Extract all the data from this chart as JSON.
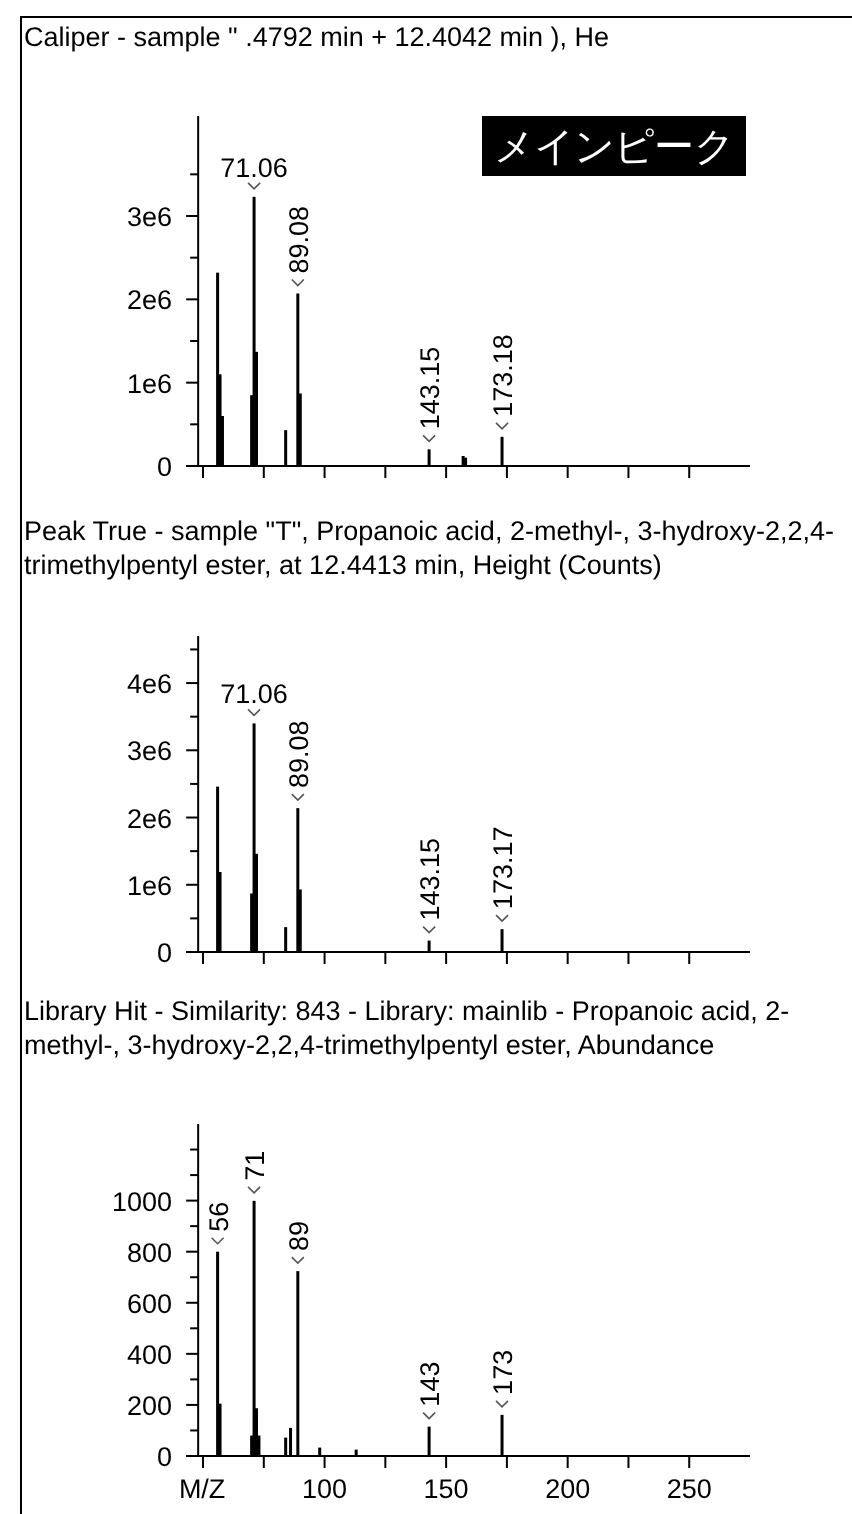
{
  "chart_data": [
    {
      "type": "bar",
      "title": "Caliper - sample \" .4792 min + 12.4042 min ), He",
      "x": [
        56,
        57,
        58,
        70,
        71,
        72,
        84,
        89,
        90,
        143,
        157,
        158,
        173
      ],
      "values": [
        2320000,
        1100000,
        600000,
        850000,
        3230000,
        1370000,
        430000,
        2070000,
        870000,
        200000,
        120000,
        100000,
        350000
      ],
      "color": "#000000",
      "xlim": [
        43,
        275
      ],
      "xticks": [
        {
          "value": 50,
          "label": null
        },
        {
          "value": 75,
          "label": null
        },
        {
          "value": 100,
          "label": null
        },
        {
          "value": 125,
          "label": null
        },
        {
          "value": 150,
          "label": null
        },
        {
          "value": 175,
          "label": null
        },
        {
          "value": 200,
          "label": null
        },
        {
          "value": 225,
          "label": null
        },
        {
          "value": 250,
          "label": null
        }
      ],
      "ylim": [
        0,
        4200000
      ],
      "yticks": [
        {
          "value": 0,
          "label": "0"
        },
        {
          "value": 500000,
          "label": null
        },
        {
          "value": 1000000,
          "label": "1e6"
        },
        {
          "value": 1500000,
          "label": null
        },
        {
          "value": 2000000,
          "label": "2e6"
        },
        {
          "value": 2500000,
          "label": null
        },
        {
          "value": 3000000,
          "label": "3e6"
        },
        {
          "value": 3500000,
          "label": null
        }
      ],
      "tick_labels": "y",
      "annotations": [
        {
          "text": "71.06",
          "x": 71,
          "y": 3230000
        },
        {
          "text": "89.08",
          "x": 89,
          "y": 2070000
        },
        {
          "text": "143.15",
          "x": 143,
          "y": 200000
        },
        {
          "text": "173.18",
          "x": 173,
          "y": 350000
        },
        "メインピーク"
      ]
    },
    {
      "type": "bar",
      "title": "Peak True - sample \"T\", Propanoic acid, 2-methyl-, 3-hydroxy-2,2,4-trimethylpentyl ester, at 12.4413 min, Height (Counts)",
      "x": [
        56,
        57,
        70,
        71,
        72,
        84,
        89,
        90,
        143,
        173
      ],
      "values": [
        2460000,
        1190000,
        870000,
        3400000,
        1460000,
        370000,
        2140000,
        930000,
        170000,
        340000
      ],
      "color": "#000000",
      "xlim": [
        43,
        275
      ],
      "xticks": [
        {
          "value": 50,
          "label": null
        },
        {
          "value": 75,
          "label": null
        },
        {
          "value": 100,
          "label": null
        },
        {
          "value": 125,
          "label": null
        },
        {
          "value": 150,
          "label": null
        },
        {
          "value": 175,
          "label": null
        },
        {
          "value": 200,
          "label": null
        },
        {
          "value": 225,
          "label": null
        },
        {
          "value": 250,
          "label": null
        }
      ],
      "ylim": [
        0,
        4700000
      ],
      "yticks": [
        {
          "value": 0,
          "label": "0"
        },
        {
          "value": 500000,
          "label": null
        },
        {
          "value": 1000000,
          "label": "1e6"
        },
        {
          "value": 1500000,
          "label": null
        },
        {
          "value": 2000000,
          "label": "2e6"
        },
        {
          "value": 2500000,
          "label": null
        },
        {
          "value": 3000000,
          "label": "3e6"
        },
        {
          "value": 3500000,
          "label": null
        },
        {
          "value": 4000000,
          "label": "4e6"
        },
        {
          "value": 4500000,
          "label": null
        }
      ],
      "tick_labels": "y",
      "annotations": [
        {
          "text": "71.06",
          "x": 71,
          "y": 3400000
        },
        {
          "text": "89.08",
          "x": 89,
          "y": 2140000
        },
        {
          "text": "143.15",
          "x": 143,
          "y": 170000
        },
        {
          "text": "173.17",
          "x": 173,
          "y": 340000
        }
      ]
    },
    {
      "type": "bar",
      "title": "Library Hit - Similarity: 843 - Library: mainlib - Propanoic acid, 2-methyl-, 3-hydroxy-2,2,4-trimethylpentyl ester, Abundance",
      "x": [
        56,
        57,
        70,
        71,
        72,
        73,
        84,
        86,
        89,
        98,
        113,
        143,
        173
      ],
      "values": [
        800,
        205,
        80,
        999,
        187,
        80,
        72,
        110,
        724,
        33,
        25,
        115,
        161
      ],
      "color": "#000000",
      "xlabel": "M/Z",
      "xlim": [
        43,
        275
      ],
      "xticks": [
        {
          "value": 50,
          "label": null
        },
        {
          "value": 75,
          "label": null
        },
        100,
        {
          "value": 125,
          "label": null
        },
        150,
        {
          "value": 175,
          "label": null
        },
        200,
        {
          "value": 225,
          "label": null
        },
        250
      ],
      "ylim": [
        0,
        1300
      ],
      "yticks": [
        0,
        {
          "value": 100,
          "label": null
        },
        200,
        {
          "value": 300,
          "label": null
        },
        400,
        {
          "value": 500,
          "label": null
        },
        600,
        {
          "value": 700,
          "label": null
        },
        800,
        {
          "value": 900,
          "label": null
        },
        1000,
        {
          "value": 1100,
          "label": null
        },
        {
          "value": 1200,
          "label": null
        }
      ],
      "annotations": [
        {
          "text": "56",
          "x": 56,
          "y": 800
        },
        {
          "text": "71",
          "x": 71,
          "y": 999
        },
        {
          "text": "89",
          "x": 89,
          "y": 724
        },
        {
          "text": "143",
          "x": 143,
          "y": 115
        },
        {
          "text": "173",
          "x": 173,
          "y": 161
        }
      ]
    }
  ]
}
